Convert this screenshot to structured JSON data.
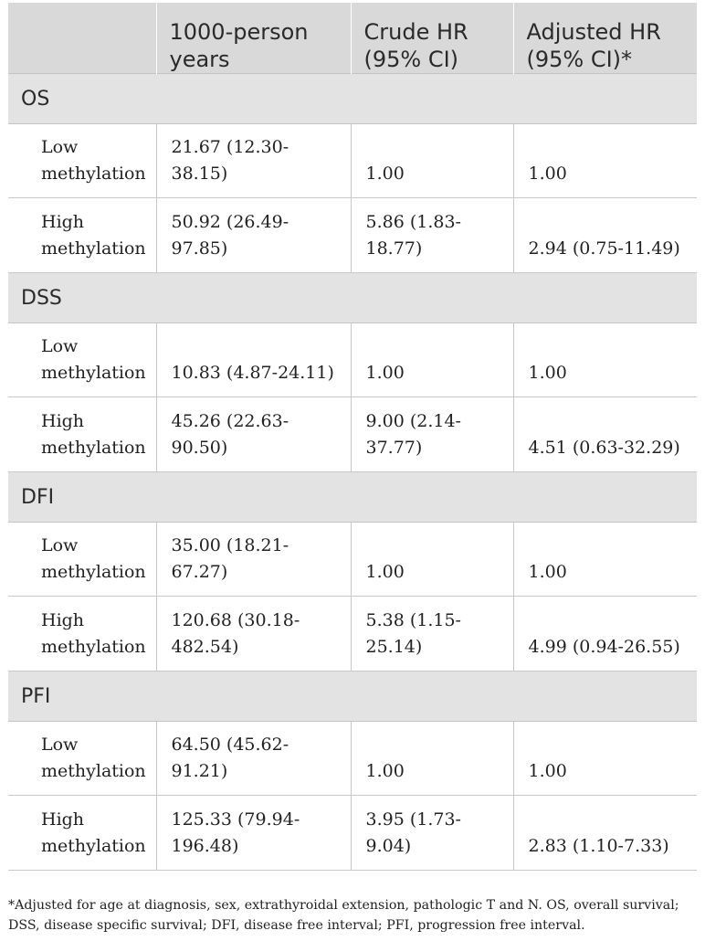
{
  "table": {
    "headers": [
      "",
      "1000-person years",
      "Crude HR (95% CI)",
      "Adjusted HR (95% CI)*"
    ],
    "groups": [
      {
        "label": "OS",
        "rows": [
          {
            "label": "Low methylation",
            "person_years": "21.67 (12.30-38.15)",
            "crude_hr": "1.00",
            "adjusted_hr": "1.00"
          },
          {
            "label": "High methylation",
            "person_years": "50.92 (26.49-97.85)",
            "crude_hr": "5.86 (1.83-18.77)",
            "adjusted_hr": "2.94 (0.75-11.49)"
          }
        ]
      },
      {
        "label": "DSS",
        "rows": [
          {
            "label": "Low methylation",
            "person_years": "10.83 (4.87-24.11)",
            "crude_hr": "1.00",
            "adjusted_hr": "1.00"
          },
          {
            "label": "High methylation",
            "person_years": "45.26 (22.63-90.50)",
            "crude_hr": "9.00 (2.14-37.77)",
            "adjusted_hr": "4.51 (0.63-32.29)"
          }
        ]
      },
      {
        "label": "DFI",
        "rows": [
          {
            "label": "Low methylation",
            "person_years": "35.00 (18.21-67.27)",
            "crude_hr": "1.00",
            "adjusted_hr": "1.00"
          },
          {
            "label": "High methylation",
            "person_years": "120.68 (30.18-482.54)",
            "crude_hr": "5.38 (1.15-25.14)",
            "adjusted_hr": "4.99 (0.94-26.55)"
          }
        ]
      },
      {
        "label": "PFI",
        "rows": [
          {
            "label": "Low methylation",
            "person_years": "64.50 (45.62-91.21)",
            "crude_hr": "1.00",
            "adjusted_hr": "1.00"
          },
          {
            "label": "High methylation",
            "person_years": "125.33 (79.94-196.48)",
            "crude_hr": "3.95 (1.73-9.04)",
            "adjusted_hr": "2.83 (1.10-7.33)"
          }
        ]
      }
    ]
  },
  "footnote": "*Adjusted for age at diagnosis, sex, extrathyroidal extension, pathologic T and N. OS, overall survival; DSS, disease specific survival; DFI, disease free interval; PFI, progression free interval."
}
